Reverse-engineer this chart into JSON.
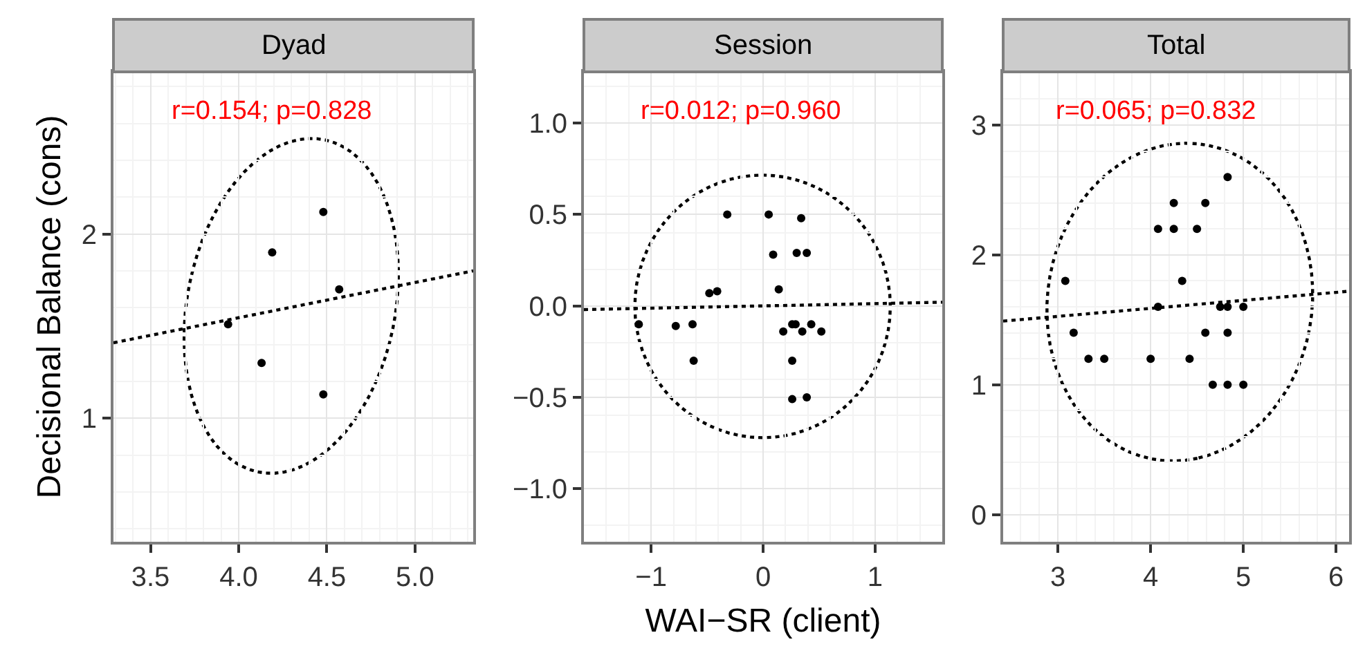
{
  "chart_data": [
    {
      "type": "scatter",
      "title": "Dyad",
      "ylabel": "Decisional Balance (cons)",
      "annotations": [
        "r=0.154; p=0.828"
      ],
      "xlim": [
        3.29,
        5.33
      ],
      "ylim": [
        0.33,
        2.88
      ],
      "xticks": [
        3.5,
        {
          "value": 4.0,
          "label": "4.0"
        },
        4.5,
        {
          "value": 5.0,
          "label": "5.0"
        }
      ],
      "yticks": [
        1,
        2
      ],
      "grid": true,
      "series": [
        {
          "color": "#000000",
          "marker": "circle",
          "x": [
            4.48,
            4.19,
            4.57,
            3.94,
            4.13,
            4.48
          ],
          "values": [
            2.12,
            1.9,
            1.7,
            1.51,
            1.3,
            1.13
          ]
        },
        {
          "type": "line",
          "color": "#000000",
          "line_style": "dotted",
          "x": [
            3.29,
            5.33
          ],
          "values": [
            1.41,
            1.8
          ]
        }
      ]
    },
    {
      "type": "scatter",
      "title": "Session",
      "xlabel": "WAI−SR (client)",
      "annotations": [
        "r=0.012; p=0.960"
      ],
      "xlim": [
        -1.6,
        1.6
      ],
      "ylim": [
        -1.29,
        1.28
      ],
      "xticks": [
        {
          "value": -1,
          "label": "−1"
        },
        0,
        1
      ],
      "yticks": [
        {
          "value": -1.0,
          "label": "−1.0"
        },
        {
          "value": -0.5,
          "label": "−0.5"
        },
        {
          "value": 0.0,
          "label": "0.0"
        },
        0.5,
        {
          "value": 1.0,
          "label": "1.0"
        }
      ],
      "grid": true,
      "series": [
        {
          "color": "#000000",
          "marker": "circle",
          "x": [
            -0.32,
            0.05,
            0.34,
            0.09,
            0.3,
            0.39,
            0.14,
            -0.48,
            -0.41,
            -1.11,
            -0.78,
            -0.63,
            -0.62,
            0.18,
            0.26,
            0.29,
            0.35,
            0.43,
            0.52,
            0.26,
            0.26,
            0.39
          ],
          "values": [
            0.5,
            0.5,
            0.48,
            0.28,
            0.29,
            0.29,
            0.09,
            0.07,
            0.08,
            -0.1,
            -0.11,
            -0.1,
            -0.3,
            -0.14,
            -0.1,
            -0.1,
            -0.14,
            -0.1,
            -0.14,
            -0.3,
            -0.51,
            -0.5
          ]
        },
        {
          "type": "line",
          "color": "#000000",
          "line_style": "dotted",
          "x": [
            -1.6,
            1.6
          ],
          "values": [
            -0.02,
            0.02
          ]
        }
      ]
    },
    {
      "type": "scatter",
      "title": "Total",
      "annotations": [
        "r=0.065; p=0.832"
      ],
      "xlim": [
        2.41,
        6.14
      ],
      "ylim": [
        -0.21,
        3.41
      ],
      "xticks": [
        3,
        4,
        5,
        6
      ],
      "yticks": [
        0,
        1,
        2,
        3
      ],
      "grid": true,
      "series": [
        {
          "color": "#000000",
          "marker": "circle",
          "x": [
            4.83,
            4.25,
            4.59,
            4.08,
            4.25,
            4.5,
            3.08,
            4.34,
            4.08,
            4.75,
            4.83,
            5.0,
            3.17,
            4.59,
            4.83,
            3.33,
            3.5,
            4.0,
            4.42,
            4.67,
            4.83,
            5.0
          ],
          "values": [
            2.6,
            2.4,
            2.4,
            2.2,
            2.2,
            2.2,
            1.8,
            1.8,
            1.6,
            1.6,
            1.6,
            1.6,
            1.4,
            1.4,
            1.4,
            1.2,
            1.2,
            1.2,
            1.2,
            1.0,
            1.0,
            1.0
          ]
        },
        {
          "type": "line",
          "color": "#000000",
          "line_style": "dotted",
          "x": [
            2.41,
            6.14
          ],
          "values": [
            1.49,
            1.72
          ]
        }
      ]
    }
  ]
}
